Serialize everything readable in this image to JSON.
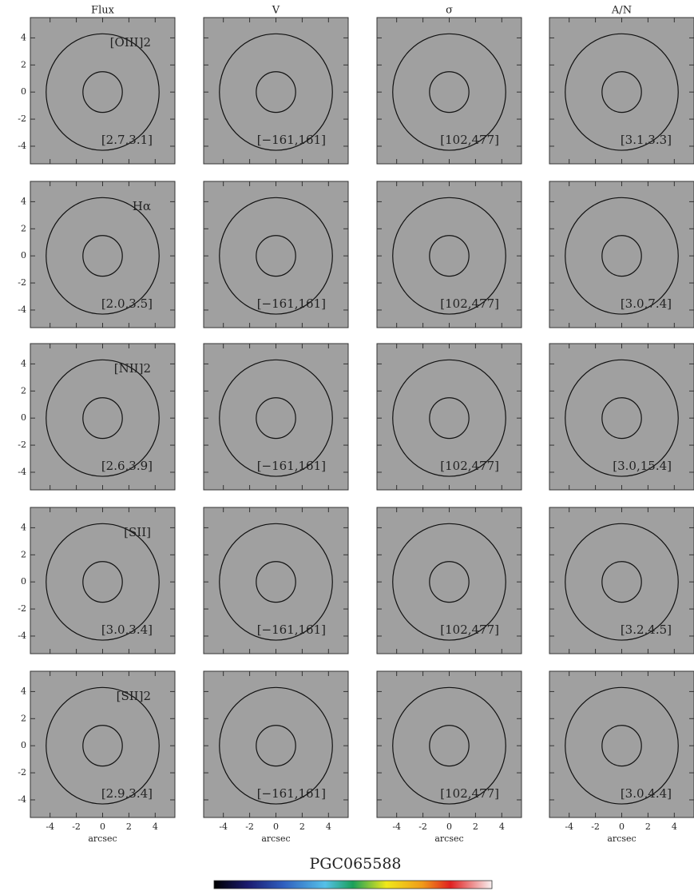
{
  "chart_data": {
    "type": "map-grid",
    "title": "PGC065588",
    "columns": [
      "Flux",
      "V",
      "σ",
      "A/N"
    ],
    "rows": [
      {
        "label": "[OIII]2",
        "ranges": [
          "[2.7,3.1]",
          "[−161,161]",
          "[102,477]",
          "[3.1,3.3]"
        ]
      },
      {
        "label": "Hα",
        "ranges": [
          "[2.0,3.5]",
          "[−161,161]",
          "[102,477]",
          "[3.0,7.4]"
        ]
      },
      {
        "label": "[NII]2",
        "ranges": [
          "[2.6,3.9]",
          "[−161,161]",
          "[102,477]",
          "[3.0,15.4]"
        ]
      },
      {
        "label": "[SII]",
        "ranges": [
          "[3.0,3.4]",
          "[−161,161]",
          "[102,477]",
          "[3.2,4.5]"
        ]
      },
      {
        "label": "[SII]2",
        "ranges": [
          "[2.9,3.4]",
          "[−161,161]",
          "[102,477]",
          "[3.0,4.4]"
        ]
      }
    ],
    "xlabel": "arcsec",
    "xlim": [
      -5.5,
      5.5
    ],
    "ylim": [
      -5.3,
      5.5
    ],
    "xticks": [
      -4,
      -2,
      0,
      2,
      4
    ],
    "yticks": [
      -4,
      -2,
      0,
      2,
      4
    ],
    "circle_radii": [
      1.5,
      4.3
    ]
  }
}
